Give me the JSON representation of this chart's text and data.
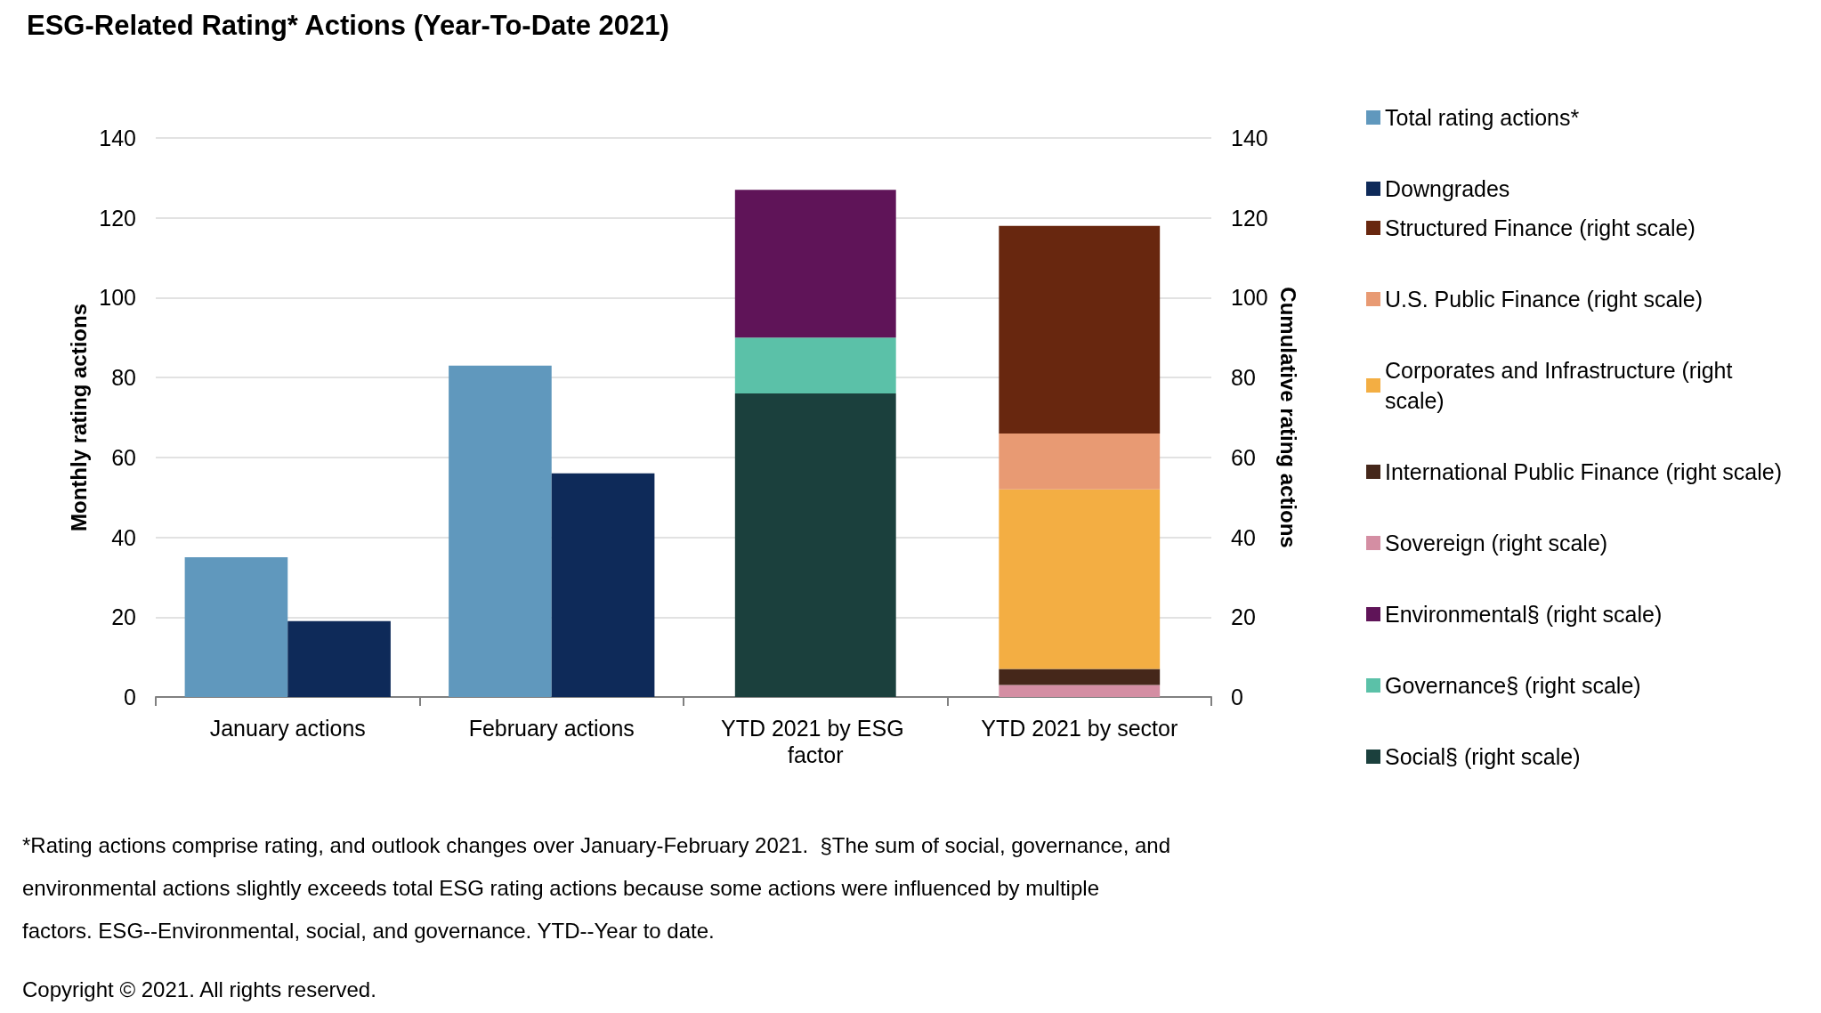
{
  "chart_data": [
    {
      "type": "bar",
      "title": "ESG-Related Rating* Actions (Year-To-Date 2021)",
      "categories": [
        "January actions",
        "February actions",
        "YTD 2021 by ESG factor",
        "YTD 2021 by sector"
      ],
      "ylabel": "Monthly rating actions",
      "ylim": [
        0,
        140
      ],
      "yticks": [
        0,
        20,
        40,
        60,
        80,
        100,
        120,
        140
      ],
      "grid": "y",
      "legend": "right",
      "series": [
        {
          "name": "Total rating actions*",
          "color": "#6098bd",
          "values": [
            35,
            83,
            null,
            null
          ]
        },
        {
          "name": "Downgrades",
          "color": "#0e2a59",
          "values": [
            19,
            56,
            null,
            null
          ]
        }
      ],
      "annotations": [
        "*Rating actions comprise rating, and outlook changes over January-February 2021.  §The sum of social, governance, and environmental actions slightly exceeds total ESG rating actions because some actions were influenced by multiple factors. ESG--Environmental, social, and governance. YTD--Year to date.",
        "Copyright © 2021. All rights reserved."
      ]
    },
    {
      "type": "bar",
      "categories": [
        "January actions",
        "February actions",
        "YTD 2021 by ESG factor",
        "YTD 2021 by sector"
      ],
      "ylabel": "Cumulative rating actions",
      "ylim": [
        0,
        140
      ],
      "yticks": [
        0,
        20,
        40,
        60,
        80,
        100,
        120,
        140
      ],
      "tick_labels": "y",
      "stacked": true,
      "legend": "right",
      "series": [
        {
          "name": "Social§ (right scale)",
          "color": "#1b403d",
          "values": [
            null,
            null,
            76,
            null
          ]
        },
        {
          "name": "Governance§ (right scale)",
          "color": "#5bc1a8",
          "values": [
            null,
            null,
            14,
            null
          ]
        },
        {
          "name": "Environmental§ (right scale)",
          "color": "#5f1458",
          "values": [
            null,
            null,
            37,
            null
          ]
        },
        {
          "name": "Sovereign (right scale)",
          "color": "#d48ea3",
          "values": [
            null,
            null,
            null,
            3
          ]
        },
        {
          "name": "International Public Finance (right scale)",
          "color": "#45271a",
          "values": [
            null,
            null,
            null,
            4
          ]
        },
        {
          "name": "Corporates and Infrastructure (right scale)",
          "color": "#f3ae43",
          "values": [
            null,
            null,
            null,
            45
          ]
        },
        {
          "name": "U.S. Public Finance (right scale)",
          "color": "#e89a73",
          "values": [
            null,
            null,
            null,
            14
          ]
        },
        {
          "name": "Structured Finance (right scale)",
          "color": "#68270f",
          "values": [
            null,
            null,
            null,
            52
          ]
        }
      ]
    }
  ]
}
